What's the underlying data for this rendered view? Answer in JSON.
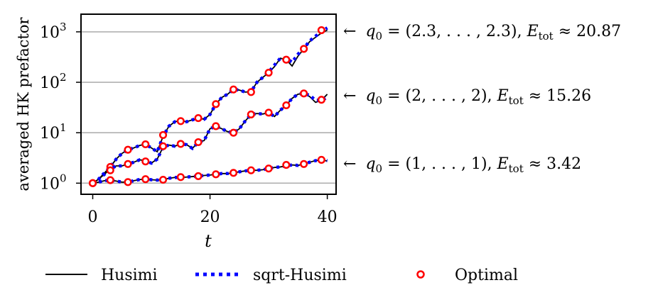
{
  "chart_data": {
    "type": "line",
    "xlabel": "t",
    "ylabel": "averaged HK prefactor",
    "xlim": [
      -2,
      41.5
    ],
    "ylim_log10": [
      -0.22,
      3.35
    ],
    "y_scale": "log",
    "x_ticks": [
      0,
      20,
      40
    ],
    "x_tick_labels": [
      "0",
      "20",
      "40"
    ],
    "y_ticks": [
      0,
      1,
      2,
      3
    ],
    "y_tick_labels": [
      {
        "base": "10",
        "exp": "0"
      },
      {
        "base": "10",
        "exp": "1"
      },
      {
        "base": "10",
        "exp": "2"
      },
      {
        "base": "10",
        "exp": "3"
      }
    ],
    "grid": "horizontal",
    "legend_placement": "bottom",
    "legend": [
      {
        "label": "Husimi",
        "style": "solid",
        "color": "#000000"
      },
      {
        "label": "sqrt-Husimi",
        "style": "dotted",
        "color": "#0000ff"
      },
      {
        "label": "Optimal",
        "style": "circle",
        "color": "#ff0000"
      }
    ],
    "annotations": [
      {
        "arrow": "←",
        "q_prefix": "q",
        "q_sub": "0",
        "q_value": " = (2.3, . . . , 2.3), ",
        "e_prefix": "E",
        "e_sub": "tot",
        "e_value": " ≈ 20.87"
      },
      {
        "arrow": "←",
        "q_prefix": "q",
        "q_sub": "0",
        "q_value": " = (2, . . . , 2), ",
        "e_prefix": "E",
        "e_sub": "tot",
        "e_value": " ≈ 15.26"
      },
      {
        "arrow": "←",
        "q_prefix": "q",
        "q_sub": "0",
        "q_value": " = (1, . . . , 1), ",
        "e_prefix": "E",
        "e_sub": "tot",
        "e_value": " ≈ 3.42"
      }
    ],
    "series": [
      {
        "name": "",
        "group": "E_tot ≈ 20.87",
        "husimi": {
          "x": [
            0,
            1,
            2,
            3,
            4,
            5,
            6,
            7,
            8,
            9,
            10,
            11,
            12,
            13,
            14,
            15,
            16,
            17,
            18,
            19,
            20,
            21,
            22,
            23,
            24,
            25,
            26,
            27,
            28,
            29,
            30,
            31,
            32,
            33,
            34,
            35,
            36,
            37,
            38,
            39,
            40
          ],
          "y": [
            1.0,
            1.2,
            1.6,
            2.1,
            3.0,
            3.9,
            4.6,
            5.0,
            5.6,
            5.9,
            5.0,
            4.2,
            8.5,
            13.5,
            16.5,
            17.5,
            16.5,
            18.0,
            19.5,
            18.5,
            23.0,
            37.0,
            50.0,
            58.0,
            72.0,
            70.0,
            64.0,
            65.0,
            100.0,
            125.0,
            155.0,
            205.0,
            300.0,
            280.0,
            210.0,
            330.0,
            460.0,
            640.0,
            780.0,
            950.0,
            1080.0
          ]
        },
        "sqrt_husimi": {
          "x": [
            0,
            1,
            2,
            3,
            4,
            5,
            6,
            7,
            8,
            9,
            10,
            11,
            12,
            13,
            14,
            15,
            16,
            17,
            18,
            19,
            20,
            21,
            22,
            23,
            24,
            25,
            26,
            27,
            28,
            29,
            30,
            31,
            32,
            33,
            34,
            35,
            36,
            37,
            38,
            39,
            40
          ],
          "y": [
            1.0,
            1.2,
            1.6,
            2.1,
            3.0,
            3.9,
            4.6,
            5.0,
            5.6,
            5.9,
            5.0,
            4.2,
            8.5,
            13.5,
            16.5,
            17.5,
            16.5,
            18.0,
            19.5,
            18.5,
            23.0,
            37.0,
            50.0,
            58.0,
            72.0,
            70.0,
            64.0,
            65.0,
            100.0,
            125.0,
            160.0,
            220.0,
            300.0,
            300.0,
            250.0,
            360.0,
            470.0,
            660.0,
            820.0,
            1020.0,
            1200.0
          ]
        },
        "optimal": {
          "x": [
            0,
            3,
            6,
            9,
            12,
            15,
            18,
            21,
            24,
            27,
            30,
            33,
            36,
            39
          ],
          "y": [
            1.0,
            2.1,
            4.6,
            5.9,
            9.0,
            17.0,
            19.5,
            37.0,
            72.0,
            64.0,
            155.0,
            280.0,
            460.0,
            1080.0
          ]
        }
      },
      {
        "name": "",
        "group": "E_tot ≈ 15.26",
        "husimi": {
          "x": [
            0,
            1,
            2,
            3,
            4,
            5,
            6,
            7,
            8,
            9,
            10,
            11,
            12,
            13,
            14,
            15,
            16,
            17,
            18,
            19,
            20,
            21,
            22,
            23,
            24,
            25,
            26,
            27,
            28,
            29,
            30,
            31,
            32,
            33,
            34,
            35,
            36,
            37,
            38,
            39,
            40
          ],
          "y": [
            1.0,
            1.2,
            1.5,
            1.9,
            2.2,
            2.2,
            2.4,
            2.6,
            2.9,
            2.8,
            2.5,
            3.0,
            5.2,
            5.7,
            5.4,
            6.0,
            5.8,
            4.9,
            6.5,
            7.0,
            12.0,
            13.5,
            12.0,
            10.5,
            10.0,
            12.0,
            17.0,
            23.0,
            24.0,
            23.5,
            25.0,
            21.0,
            28.0,
            35.0,
            48.0,
            58.0,
            60.0,
            52.0,
            40.0,
            44.0,
            58.0
          ]
        },
        "sqrt_husimi": {
          "x": [
            0,
            1,
            2,
            3,
            4,
            5,
            6,
            7,
            8,
            9,
            10,
            11,
            12,
            13,
            14,
            15,
            16,
            17,
            18,
            19,
            20,
            21,
            22,
            23,
            24,
            25,
            26,
            27,
            28,
            29,
            30,
            31,
            32,
            33,
            34,
            35,
            36,
            37,
            38,
            39,
            40
          ],
          "y": [
            1.0,
            1.2,
            1.5,
            1.9,
            2.2,
            2.2,
            2.4,
            2.6,
            2.9,
            2.8,
            2.5,
            3.0,
            5.2,
            5.7,
            5.4,
            6.0,
            5.8,
            4.9,
            6.5,
            7.0,
            12.0,
            13.5,
            12.0,
            10.5,
            10.0,
            12.0,
            17.0,
            23.0,
            24.0,
            23.5,
            25.0,
            21.0,
            28.0,
            35.0,
            48.0,
            58.0,
            60.0,
            55.0,
            44.0,
            44.0,
            50.0
          ]
        },
        "optimal": {
          "x": [
            0,
            3,
            6,
            9,
            12,
            15,
            18,
            21,
            24,
            27,
            30,
            33,
            36,
            39
          ],
          "y": [
            1.0,
            1.8,
            2.4,
            2.7,
            5.4,
            6.0,
            6.5,
            13.5,
            10.0,
            23.0,
            25.0,
            35.0,
            60.0,
            45.0
          ]
        }
      },
      {
        "name": "",
        "group": "E_tot ≈ 3.42",
        "husimi": {
          "x": [
            0,
            1,
            2,
            3,
            4,
            5,
            6,
            7,
            8,
            9,
            10,
            11,
            12,
            13,
            14,
            15,
            16,
            17,
            18,
            19,
            20,
            21,
            22,
            23,
            24,
            25,
            26,
            27,
            28,
            29,
            30,
            31,
            32,
            33,
            34,
            35,
            36,
            37,
            38,
            39,
            40
          ],
          "y": [
            1.0,
            1.05,
            1.12,
            1.15,
            1.1,
            1.05,
            1.05,
            1.12,
            1.18,
            1.2,
            1.17,
            1.15,
            1.18,
            1.25,
            1.3,
            1.3,
            1.32,
            1.35,
            1.38,
            1.42,
            1.45,
            1.5,
            1.55,
            1.55,
            1.6,
            1.68,
            1.75,
            1.8,
            1.8,
            1.85,
            1.95,
            2.05,
            2.1,
            2.2,
            2.3,
            2.25,
            2.4,
            2.6,
            2.8,
            2.9,
            2.75
          ]
        },
        "sqrt_husimi": {
          "x": [
            0,
            1,
            2,
            3,
            4,
            5,
            6,
            7,
            8,
            9,
            10,
            11,
            12,
            13,
            14,
            15,
            16,
            17,
            18,
            19,
            20,
            21,
            22,
            23,
            24,
            25,
            26,
            27,
            28,
            29,
            30,
            31,
            32,
            33,
            34,
            35,
            36,
            37,
            38,
            39,
            40
          ],
          "y": [
            1.0,
            1.05,
            1.12,
            1.15,
            1.1,
            1.05,
            1.05,
            1.12,
            1.18,
            1.2,
            1.17,
            1.15,
            1.18,
            1.25,
            1.3,
            1.3,
            1.32,
            1.35,
            1.38,
            1.42,
            1.45,
            1.5,
            1.55,
            1.55,
            1.6,
            1.68,
            1.75,
            1.8,
            1.8,
            1.85,
            1.95,
            2.05,
            2.1,
            2.2,
            2.3,
            2.25,
            2.4,
            2.6,
            2.8,
            2.9,
            2.8
          ]
        },
        "optimal": {
          "x": [
            0,
            3,
            6,
            9,
            12,
            15,
            18,
            21,
            24,
            27,
            30,
            33,
            36,
            39
          ],
          "y": [
            1.0,
            1.15,
            1.05,
            1.2,
            1.17,
            1.32,
            1.38,
            1.5,
            1.6,
            1.8,
            1.95,
            2.3,
            2.4,
            2.9
          ]
        }
      }
    ]
  }
}
